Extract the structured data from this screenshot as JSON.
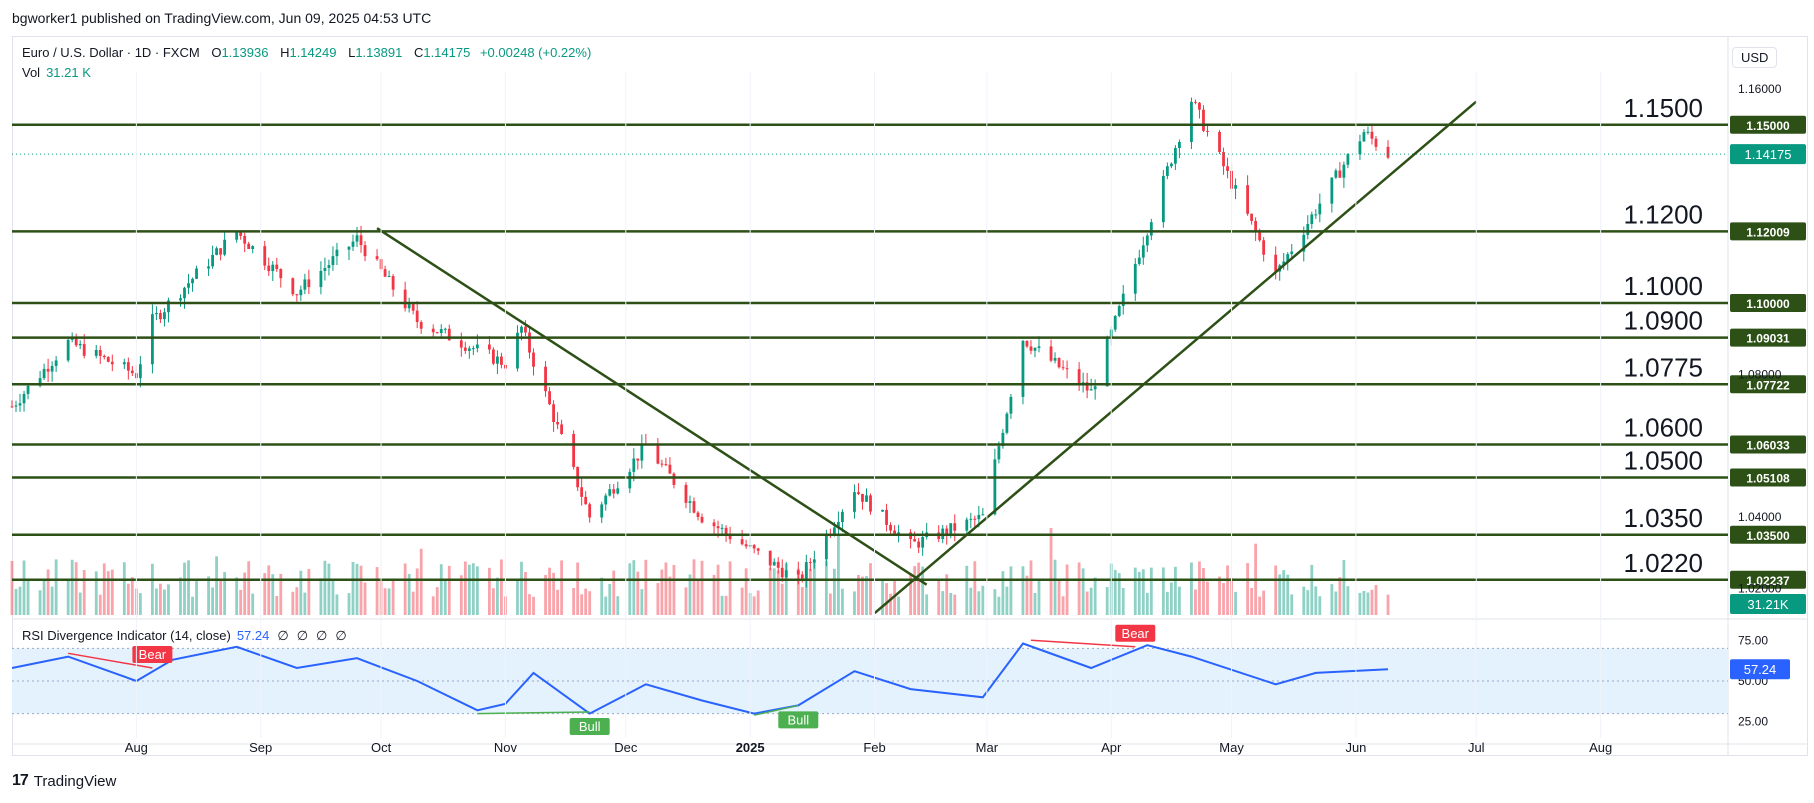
{
  "attribution": "bgworker1 published on TradingView.com, Jun 09, 2025 04:53 UTC",
  "header": {
    "symbol": "Euro / U.S. Dollar · 1D · FXCM",
    "open_label": "O",
    "open": "1.13936",
    "high_label": "H",
    "high": "1.14249",
    "low_label": "L",
    "low": "1.13891",
    "close_label": "C",
    "close": "1.14175",
    "change": "+0.00248 (+0.22%)",
    "vol_label": "Vol",
    "vol": "31.21 K"
  },
  "currency": "USD",
  "footer": {
    "logo_mark": "17",
    "logo_text": "TradingView"
  },
  "rsi_legend": {
    "label": "RSI Divergence Indicator (14, close)",
    "value": "57.24",
    "extras": [
      "∅",
      "∅",
      "∅",
      "∅"
    ]
  },
  "colors": {
    "up": "#089981",
    "down": "#f23645",
    "level": "#2d5016",
    "rsi": "#2962ff",
    "rsi_band": "#e3f2fd",
    "bull": "#4caf50",
    "bear": "#f23645"
  },
  "chart_data": [
    {
      "type": "candlestick",
      "x_tick_labels": [
        "Aug",
        "Sep",
        "Oct",
        "Nov",
        "Dec",
        "2025",
        "Feb",
        "Mar",
        "Apr",
        "May",
        "Jun",
        "Jul",
        "Aug"
      ],
      "y_tick_labels": [
        "1.16000",
        "1.08000",
        "1.04000",
        "1.02000"
      ],
      "ylim": [
        1.0125,
        1.1648
      ],
      "hidden_y_ticks": [
        1.16,
        1.08,
        1.04,
        1.02
      ],
      "price_label": "1.14175",
      "price_value": 1.14175,
      "levels": [
        {
          "label": "1.1500",
          "axis_label": "1.15000",
          "value": 1.15
        },
        {
          "label": "1.1200",
          "axis_label": "1.12009",
          "value": 1.12009
        },
        {
          "label": "1.1000",
          "axis_label": "1.10000",
          "value": 1.1
        },
        {
          "label": "1.0900",
          "axis_label": "1.09031",
          "value": 1.09031
        },
        {
          "label": "1.0775",
          "axis_label": "1.07722",
          "value": 1.07722
        },
        {
          "label": "1.0600",
          "axis_label": "1.06033",
          "value": 1.06033
        },
        {
          "label": "1.0500",
          "axis_label": "1.05108",
          "value": 1.05108
        },
        {
          "label": "1.0350",
          "axis_label": "1.03500",
          "value": 1.035
        },
        {
          "label": "1.0220",
          "axis_label": "1.02237",
          "value": 1.02237
        }
      ],
      "trendlines": [
        {
          "from": [
            "2024-09-30",
            1.121
          ],
          "to": [
            "2025-02-14",
            1.021
          ]
        },
        {
          "from": [
            "2025-02-01",
            1.013
          ],
          "to": [
            "2025-07-01",
            1.1565
          ]
        }
      ],
      "price_path": [
        [
          "2024-07-01",
          1.071
        ],
        [
          "2024-07-15",
          1.089
        ],
        [
          "2024-08-01",
          1.08
        ],
        [
          "2024-08-05",
          1.095
        ],
        [
          "2024-08-26",
          1.12
        ],
        [
          "2024-09-10",
          1.103
        ],
        [
          "2024-09-25",
          1.118
        ],
        [
          "2024-10-10",
          1.095
        ],
        [
          "2024-11-01",
          1.083
        ],
        [
          "2024-11-05",
          1.093
        ],
        [
          "2024-11-22",
          1.04
        ],
        [
          "2024-12-06",
          1.06
        ],
        [
          "2024-12-20",
          1.04
        ],
        [
          "2025-01-13",
          1.022
        ],
        [
          "2025-01-27",
          1.048
        ],
        [
          "2025-02-10",
          1.032
        ],
        [
          "2025-02-28",
          1.04
        ],
        [
          "2025-03-10",
          1.09
        ],
        [
          "2025-03-27",
          1.075
        ],
        [
          "2025-04-21",
          1.157
        ],
        [
          "2025-05-12",
          1.108
        ],
        [
          "2025-06-03",
          1.148
        ],
        [
          "2025-06-09",
          1.14175
        ]
      ],
      "volume_label": "31.21K"
    },
    {
      "type": "line",
      "name": "RSI Divergence Indicator (14, close)",
      "y_tick_labels": [
        "75.00",
        "50.00",
        "25.00"
      ],
      "ylim": [
        15,
        85
      ],
      "band": [
        30,
        70
      ],
      "value_label": "57.24",
      "value": 57.24,
      "points": [
        [
          "2024-07-01",
          58
        ],
        [
          "2024-07-15",
          65
        ],
        [
          "2024-08-01",
          50
        ],
        [
          "2024-08-10",
          63
        ],
        [
          "2024-08-26",
          71
        ],
        [
          "2024-09-10",
          58
        ],
        [
          "2024-09-25",
          64
        ],
        [
          "2024-10-10",
          50
        ],
        [
          "2024-10-25",
          32
        ],
        [
          "2024-11-01",
          36
        ],
        [
          "2024-11-08",
          55
        ],
        [
          "2024-11-22",
          30
        ],
        [
          "2024-12-06",
          48
        ],
        [
          "2024-12-20",
          38
        ],
        [
          "2025-01-02",
          30
        ],
        [
          "2025-01-13",
          35
        ],
        [
          "2025-01-27",
          56
        ],
        [
          "2025-02-10",
          45
        ],
        [
          "2025-02-28",
          40
        ],
        [
          "2025-03-10",
          73
        ],
        [
          "2025-03-27",
          58
        ],
        [
          "2025-04-10",
          72
        ],
        [
          "2025-04-21",
          65
        ],
        [
          "2025-05-12",
          48
        ],
        [
          "2025-05-22",
          55
        ],
        [
          "2025-06-09",
          57.24
        ]
      ],
      "divergences": [
        {
          "label": "Bear",
          "from": [
            "2024-07-15",
            67
          ],
          "to": [
            "2024-08-05",
            58
          ]
        },
        {
          "label": "Bull",
          "from": [
            "2024-10-25",
            30
          ],
          "to": [
            "2024-11-22",
            31
          ]
        },
        {
          "label": "Bull",
          "from": [
            "2025-01-02",
            29
          ],
          "to": [
            "2025-01-13",
            35
          ]
        },
        {
          "label": "Bear",
          "from": [
            "2025-03-12",
            75
          ],
          "to": [
            "2025-04-07",
            71
          ]
        }
      ]
    }
  ]
}
